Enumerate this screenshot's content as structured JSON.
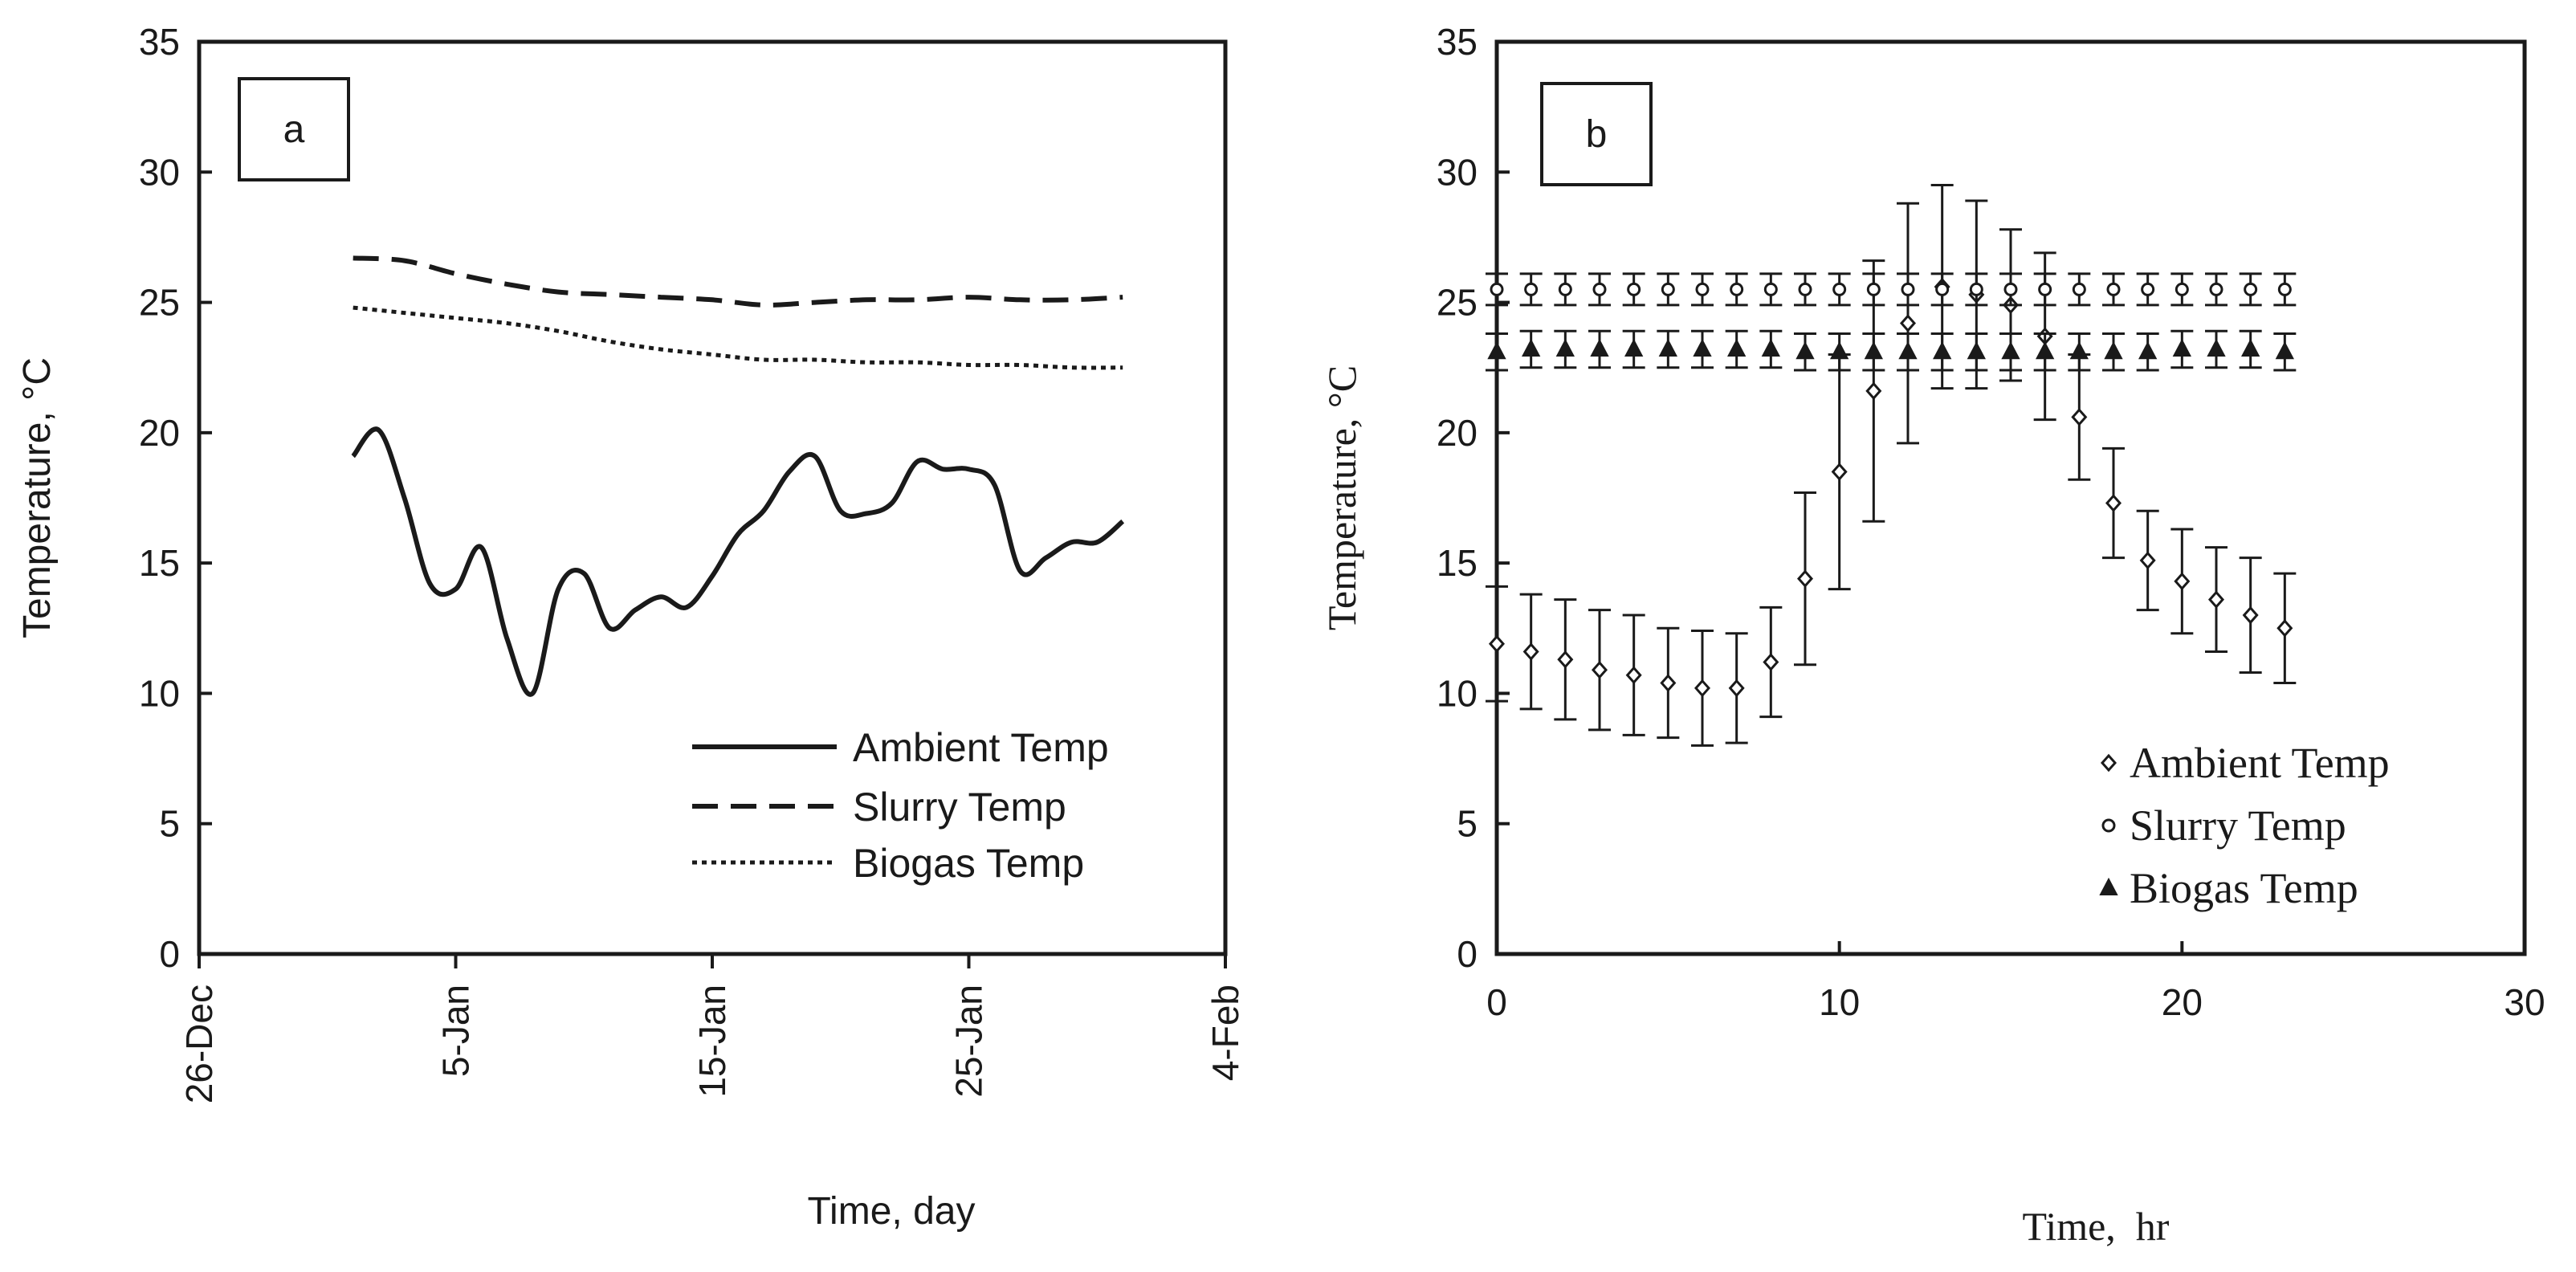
{
  "chart_data": [
    {
      "panel": "a",
      "type": "line",
      "title": "",
      "xlabel": "Time, day",
      "ylabel": "Temperature, °C",
      "xlim": [
        0,
        40
      ],
      "ylim": [
        0,
        35
      ],
      "x_ticks": [
        {
          "value": 0,
          "label": "26-Dec"
        },
        {
          "value": 10,
          "label": "5-Jan"
        },
        {
          "value": 20,
          "label": "15-Jan"
        },
        {
          "value": 30,
          "label": "25-Jan"
        },
        {
          "value": 40,
          "label": "4-Feb"
        }
      ],
      "y_ticks": [
        {
          "value": 0,
          "label": "0"
        },
        {
          "value": 5,
          "label": "5"
        },
        {
          "value": 10,
          "label": "10"
        },
        {
          "value": 15,
          "label": "15"
        },
        {
          "value": 20,
          "label": "20"
        },
        {
          "value": 25,
          "label": "25"
        },
        {
          "value": 30,
          "label": "30"
        },
        {
          "value": 35,
          "label": "35"
        }
      ],
      "legend_position": "bottom-right",
      "series": [
        {
          "name": "Ambient Temp",
          "style": "solid",
          "x": [
            6,
            7,
            8,
            9,
            10,
            11,
            12,
            13,
            14,
            15,
            16,
            17,
            18,
            19,
            20,
            21,
            22,
            23,
            24,
            25,
            26,
            27,
            28,
            29,
            30,
            31,
            32,
            33,
            34,
            35,
            36
          ],
          "values": [
            19.1,
            20.1,
            17.5,
            14.2,
            14.0,
            15.6,
            12.1,
            10.0,
            14.0,
            14.6,
            12.5,
            13.2,
            13.7,
            13.3,
            14.5,
            16.1,
            17.0,
            18.5,
            19.1,
            17.0,
            16.9,
            17.3,
            18.9,
            18.6,
            18.6,
            18.0,
            14.7,
            15.2,
            15.8,
            15.8,
            16.6
          ]
        },
        {
          "name": "Slurry Temp",
          "style": "dashed",
          "x": [
            6,
            8,
            10,
            12,
            14,
            16,
            18,
            20,
            22,
            24,
            26,
            28,
            30,
            32,
            34,
            36
          ],
          "values": [
            26.7,
            26.6,
            26.1,
            25.7,
            25.4,
            25.3,
            25.2,
            25.1,
            24.9,
            25.0,
            25.1,
            25.1,
            25.2,
            25.1,
            25.1,
            25.2
          ]
        },
        {
          "name": "Biogas Temp",
          "style": "dotted",
          "x": [
            6,
            8,
            10,
            12,
            14,
            16,
            18,
            20,
            22,
            24,
            26,
            28,
            30,
            32,
            34,
            36
          ],
          "values": [
            24.8,
            24.6,
            24.4,
            24.2,
            23.9,
            23.5,
            23.2,
            23.0,
            22.8,
            22.8,
            22.7,
            22.7,
            22.6,
            22.6,
            22.5,
            22.5
          ]
        }
      ]
    },
    {
      "panel": "b",
      "type": "scatter",
      "title": "",
      "xlabel": "Time,  hr",
      "ylabel": "Temperature, °C",
      "xlim": [
        0,
        30
      ],
      "ylim": [
        0,
        35
      ],
      "x_ticks": [
        {
          "value": 0,
          "label": "0"
        },
        {
          "value": 10,
          "label": "10"
        },
        {
          "value": 20,
          "label": "20"
        },
        {
          "value": 30,
          "label": "30"
        }
      ],
      "y_ticks": [
        {
          "value": 0,
          "label": "0"
        },
        {
          "value": 5,
          "label": "5"
        },
        {
          "value": 10,
          "label": "10"
        },
        {
          "value": 15,
          "label": "15"
        },
        {
          "value": 20,
          "label": "20"
        },
        {
          "value": 25,
          "label": "25"
        },
        {
          "value": 30,
          "label": "30"
        },
        {
          "value": 35,
          "label": "35"
        }
      ],
      "legend_position": "bottom-right",
      "x": [
        0,
        1,
        2,
        3,
        4,
        5,
        6,
        7,
        8,
        9,
        10,
        11,
        12,
        13,
        14,
        15,
        16,
        17,
        18,
        19,
        20,
        21,
        22,
        23
      ],
      "series": [
        {
          "name": "Ambient Temp",
          "marker": "diamond",
          "values": [
            11.9,
            11.6,
            11.3,
            10.9,
            10.7,
            10.4,
            10.2,
            10.2,
            11.2,
            14.4,
            18.5,
            21.6,
            24.2,
            25.6,
            25.3,
            24.9,
            23.7,
            20.6,
            17.3,
            15.1,
            14.3,
            13.6,
            13.0,
            12.5
          ],
          "errors": [
            2.2,
            2.2,
            2.3,
            2.3,
            2.3,
            2.1,
            2.2,
            2.1,
            2.1,
            3.3,
            4.5,
            5.0,
            4.6,
            3.9,
            3.6,
            2.9,
            3.2,
            2.4,
            2.1,
            1.9,
            2.0,
            2.0,
            2.2,
            2.1
          ]
        },
        {
          "name": "Slurry Temp",
          "marker": "circle",
          "values": [
            25.5,
            25.5,
            25.5,
            25.5,
            25.5,
            25.5,
            25.5,
            25.5,
            25.5,
            25.5,
            25.5,
            25.5,
            25.5,
            25.5,
            25.5,
            25.5,
            25.5,
            25.5,
            25.5,
            25.5,
            25.5,
            25.5,
            25.5,
            25.5
          ],
          "errors": [
            0.6,
            0.6,
            0.6,
            0.6,
            0.6,
            0.6,
            0.6,
            0.6,
            0.6,
            0.6,
            0.6,
            0.6,
            0.6,
            0.6,
            0.6,
            0.6,
            0.6,
            0.6,
            0.6,
            0.6,
            0.6,
            0.6,
            0.6,
            0.6
          ]
        },
        {
          "name": "Biogas Temp",
          "marker": "triangle",
          "values": [
            23.1,
            23.2,
            23.2,
            23.2,
            23.2,
            23.2,
            23.2,
            23.2,
            23.2,
            23.1,
            23.1,
            23.1,
            23.1,
            23.1,
            23.1,
            23.1,
            23.1,
            23.1,
            23.1,
            23.1,
            23.2,
            23.2,
            23.2,
            23.1
          ],
          "errors": [
            0.7,
            0.7,
            0.7,
            0.7,
            0.7,
            0.7,
            0.7,
            0.7,
            0.7,
            0.7,
            0.7,
            0.7,
            0.7,
            0.7,
            0.7,
            0.7,
            0.7,
            0.7,
            0.7,
            0.7,
            0.7,
            0.7,
            0.7,
            0.7
          ]
        }
      ]
    }
  ],
  "colors": {
    "ink": "#1a1a1a",
    "background": "#ffffff"
  }
}
